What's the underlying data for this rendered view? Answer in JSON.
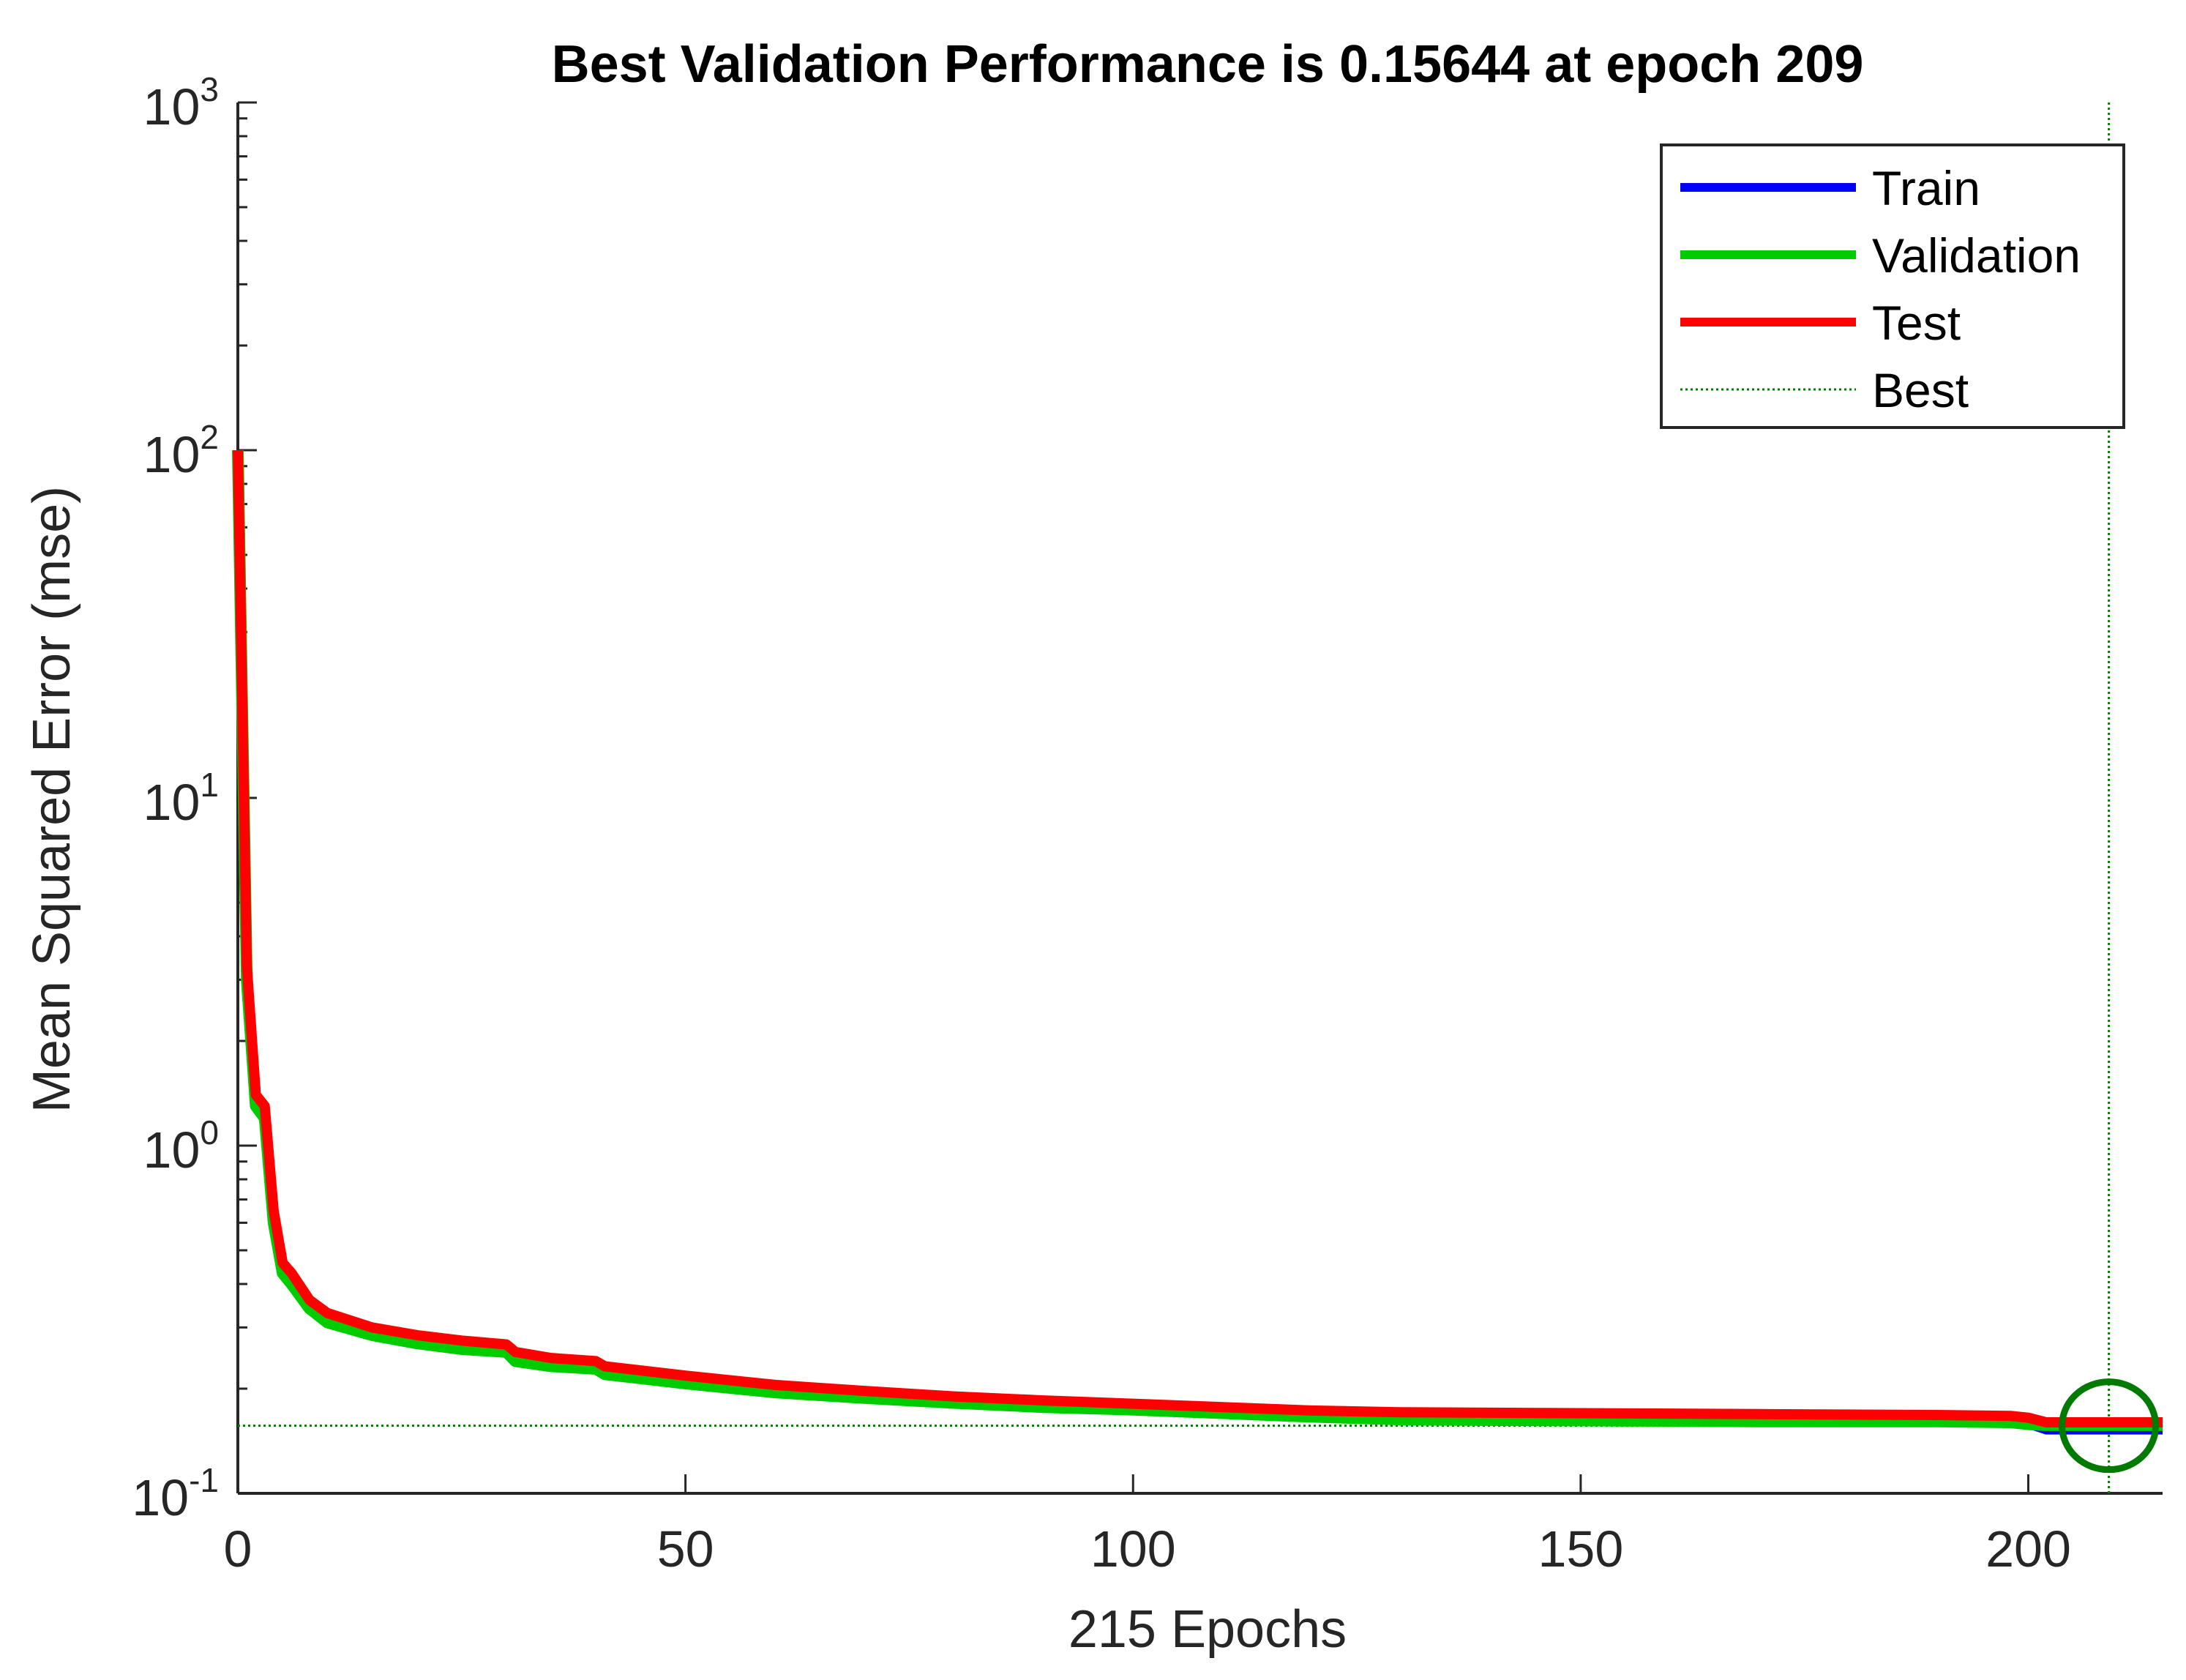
{
  "chart_data": {
    "type": "line",
    "title": "Best Validation Performance is 0.15644 at epoch 209",
    "xlabel": "215 Epochs",
    "ylabel": "Mean Squared Error  (mse)",
    "y_scale": "log",
    "xlim": [
      0,
      215
    ],
    "ylim": [
      0.1,
      1000
    ],
    "x_ticks": [
      0,
      50,
      100,
      150,
      200
    ],
    "y_tick_labels": [
      {
        "base": "10",
        "exp": "-1",
        "value": 0.1
      },
      {
        "base": "10",
        "exp": "0",
        "value": 1
      },
      {
        "base": "10",
        "exp": "1",
        "value": 10
      },
      {
        "base": "10",
        "exp": "2",
        "value": 100
      },
      {
        "base": "10",
        "exp": "3",
        "value": 1000
      }
    ],
    "best": {
      "epoch": 209,
      "value": 0.15644
    },
    "legend_position": "top-right",
    "series": [
      {
        "name": "Train",
        "color": "#0000ff",
        "x": [
          0,
          1,
          2,
          3,
          4,
          5,
          6,
          8,
          10,
          15,
          20,
          25,
          30,
          31,
          35,
          40,
          41,
          50,
          60,
          70,
          80,
          90,
          100,
          110,
          120,
          130,
          150,
          170,
          190,
          198,
          200,
          202,
          215
        ],
        "y": [
          100,
          3.0,
          1.3,
          1.2,
          0.6,
          0.43,
          0.4,
          0.34,
          0.31,
          0.285,
          0.27,
          0.26,
          0.255,
          0.24,
          0.232,
          0.228,
          0.22,
          0.207,
          0.195,
          0.188,
          0.182,
          0.177,
          0.174,
          0.17,
          0.166,
          0.163,
          0.162,
          0.161,
          0.161,
          0.16,
          0.158,
          0.152,
          0.152
        ]
      },
      {
        "name": "Validation",
        "color": "#00cc00",
        "x": [
          0,
          1,
          2,
          3,
          4,
          5,
          6,
          8,
          10,
          15,
          20,
          25,
          30,
          31,
          35,
          40,
          41,
          50,
          60,
          70,
          80,
          90,
          100,
          110,
          120,
          130,
          150,
          170,
          190,
          198,
          200,
          202,
          215
        ],
        "y": [
          100,
          3.0,
          1.3,
          1.2,
          0.6,
          0.43,
          0.4,
          0.34,
          0.31,
          0.285,
          0.27,
          0.26,
          0.255,
          0.24,
          0.232,
          0.228,
          0.22,
          0.207,
          0.195,
          0.188,
          0.182,
          0.177,
          0.174,
          0.17,
          0.166,
          0.163,
          0.162,
          0.161,
          0.161,
          0.16,
          0.158,
          0.157,
          0.157
        ]
      },
      {
        "name": "Test",
        "color": "#ff0000",
        "x": [
          0,
          1,
          2,
          3,
          4,
          5,
          6,
          8,
          10,
          15,
          20,
          25,
          30,
          31,
          35,
          40,
          41,
          50,
          60,
          70,
          80,
          90,
          100,
          110,
          120,
          130,
          150,
          170,
          190,
          198,
          200,
          202,
          215
        ],
        "y": [
          100,
          3.3,
          1.4,
          1.3,
          0.65,
          0.46,
          0.43,
          0.36,
          0.33,
          0.3,
          0.285,
          0.275,
          0.268,
          0.255,
          0.245,
          0.24,
          0.232,
          0.218,
          0.205,
          0.197,
          0.19,
          0.185,
          0.181,
          0.177,
          0.173,
          0.171,
          0.17,
          0.169,
          0.168,
          0.167,
          0.165,
          0.16,
          0.16
        ]
      }
    ],
    "legend": [
      "Train",
      "Validation",
      "Test",
      "Best"
    ],
    "colors": {
      "best": "#008000",
      "axis": "#262626",
      "circle": "#007a00"
    }
  }
}
